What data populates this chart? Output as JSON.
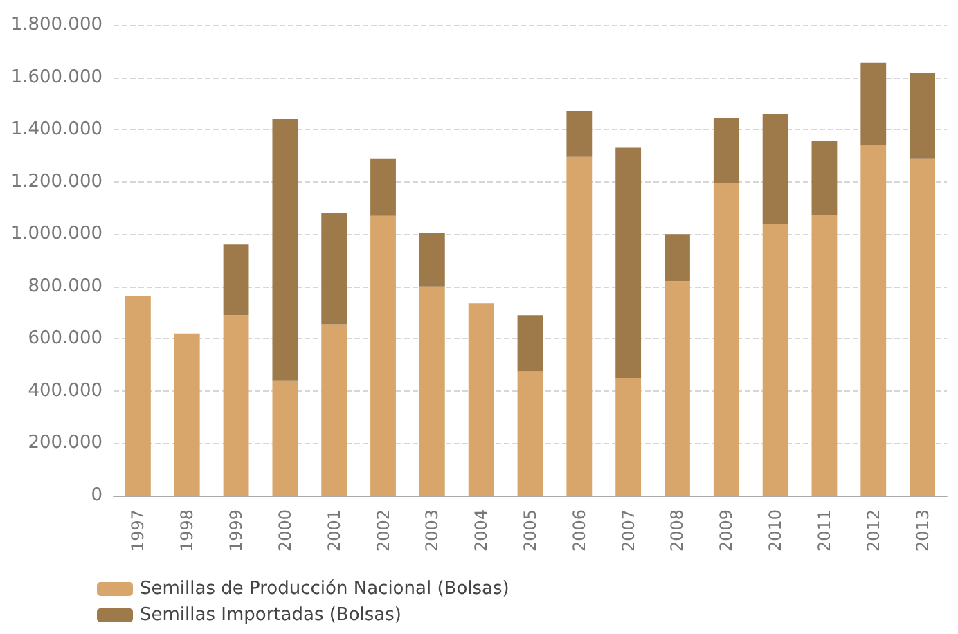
{
  "chart_data": {
    "type": "bar",
    "stacked": true,
    "categories": [
      "1997",
      "1998",
      "1999",
      "2000",
      "2001",
      "2002",
      "2003",
      "2004",
      "2005",
      "2006",
      "2007",
      "2008",
      "2009",
      "2010",
      "2011",
      "2012",
      "2013"
    ],
    "series": [
      {
        "name": "Semillas de Producción Nacional (Bolsas)",
        "color": "#d8a66b",
        "values": [
          765000,
          620000,
          690000,
          440000,
          655000,
          1070000,
          800000,
          735000,
          475000,
          1295000,
          450000,
          820000,
          1195000,
          1040000,
          1075000,
          1340000,
          1290000
        ]
      },
      {
        "name": "Semillas Importadas (Bolsas)",
        "color": "#9e7a4a",
        "values": [
          0,
          0,
          270000,
          1000000,
          425000,
          220000,
          205000,
          0,
          215000,
          175000,
          880000,
          180000,
          250000,
          420000,
          280000,
          315000,
          325000
        ]
      }
    ],
    "ylim": [
      0,
      1800000
    ],
    "yticks": [
      0,
      {
        "value": 200000,
        "label": "200.000"
      },
      {
        "value": 400000,
        "label": "400.000"
      },
      {
        "value": 600000,
        "label": "600.000"
      },
      {
        "value": 800000,
        "label": "800.000"
      },
      {
        "value": 1000000,
        "label": "1.000.000"
      },
      {
        "value": 1200000,
        "label": "1.200.000"
      },
      {
        "value": 1400000,
        "label": "1.400.000"
      },
      {
        "value": 1600000,
        "label": "1.600.000"
      },
      {
        "value": 1800000,
        "label": "1.800.000"
      }
    ],
    "grid": "y",
    "legend": "bottom left"
  }
}
